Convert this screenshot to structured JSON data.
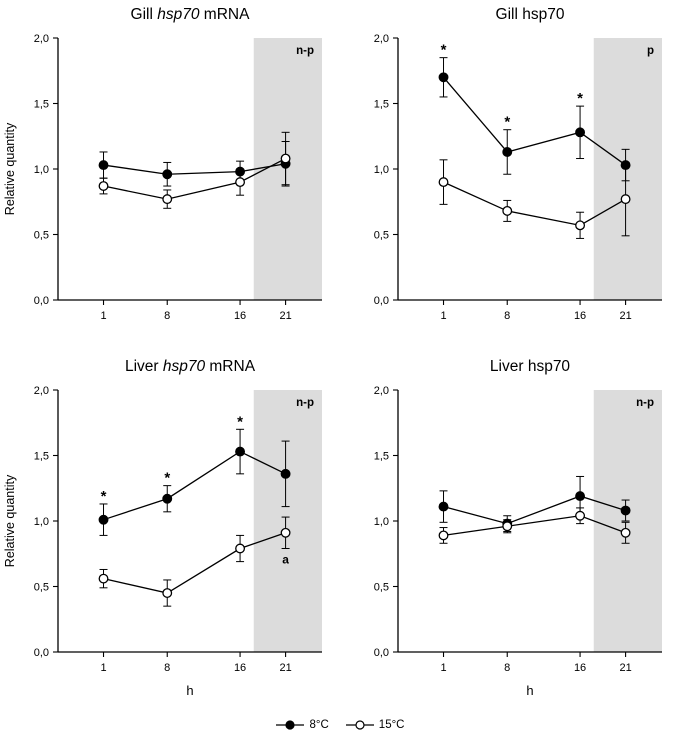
{
  "style": {
    "background": "#ffffff",
    "axis_color": "#000000",
    "series_color": "#000000",
    "night_fill": "#dcdcdc"
  },
  "legend": {
    "items": [
      {
        "label": "8°C",
        "marker": "filled"
      },
      {
        "label": "15°C",
        "marker": "open"
      }
    ]
  },
  "chart_data": [
    {
      "type": "line",
      "title_parts": [
        {
          "text": "Gill ",
          "italic": false
        },
        {
          "text": "hsp70",
          "italic": true
        },
        {
          "text": " mRNA",
          "italic": false
        }
      ],
      "annotation": "n-p",
      "y_label": "Relative quantity",
      "x_label": "",
      "xlim": [
        -4,
        25
      ],
      "ylim": [
        0,
        2
      ],
      "night_start": 17.5,
      "x_ticks": [
        {
          "value": 1,
          "label": "1"
        },
        {
          "value": 8,
          "label": "8"
        },
        {
          "value": 16,
          "label": "16"
        },
        {
          "value": 21,
          "label": "21"
        }
      ],
      "y_ticks": [
        {
          "value": 0,
          "label": "0,0"
        },
        {
          "value": 0.5,
          "label": "0,5"
        },
        {
          "value": 1,
          "label": "1,0"
        },
        {
          "value": 1.5,
          "label": "1,5"
        },
        {
          "value": 2,
          "label": "2,0"
        }
      ],
      "series": [
        {
          "name": "8°C",
          "marker": "filled",
          "x": [
            1,
            8,
            16,
            21
          ],
          "values": [
            1.03,
            0.96,
            0.98,
            1.04
          ],
          "errors": [
            0.1,
            0.09,
            0.08,
            0.17
          ],
          "asterisks": [
            false,
            false,
            false,
            false
          ]
        },
        {
          "name": "15°C",
          "marker": "open",
          "x": [
            1,
            8,
            16,
            21
          ],
          "values": [
            0.87,
            0.77,
            0.9,
            1.08
          ],
          "errors": [
            0.06,
            0.07,
            0.1,
            0.2
          ]
        }
      ]
    },
    {
      "type": "line",
      "title_parts": [
        {
          "text": "Gill hsp70",
          "italic": false
        }
      ],
      "annotation": "p",
      "y_label": "",
      "x_label": "",
      "xlim": [
        -4,
        25
      ],
      "ylim": [
        0,
        2
      ],
      "night_start": 17.5,
      "x_ticks": [
        {
          "value": 1,
          "label": "1"
        },
        {
          "value": 8,
          "label": "8"
        },
        {
          "value": 16,
          "label": "16"
        },
        {
          "value": 21,
          "label": "21"
        }
      ],
      "y_ticks": [
        {
          "value": 0,
          "label": "0,0"
        },
        {
          "value": 0.5,
          "label": "0,5"
        },
        {
          "value": 1,
          "label": "1,0"
        },
        {
          "value": 1.5,
          "label": "1,5"
        },
        {
          "value": 2,
          "label": "2,0"
        }
      ],
      "series": [
        {
          "name": "8°C",
          "marker": "filled",
          "x": [
            1,
            8,
            16,
            21
          ],
          "values": [
            1.7,
            1.13,
            1.28,
            1.03
          ],
          "errors": [
            0.15,
            0.17,
            0.2,
            0.12
          ],
          "asterisks": [
            true,
            true,
            true,
            false
          ]
        },
        {
          "name": "15°C",
          "marker": "open",
          "x": [
            1,
            8,
            16,
            21
          ],
          "values": [
            0.9,
            0.68,
            0.57,
            0.77
          ],
          "errors": [
            0.17,
            0.08,
            0.1,
            0.28
          ]
        }
      ]
    },
    {
      "type": "line",
      "title_parts": [
        {
          "text": "Liver ",
          "italic": false
        },
        {
          "text": "hsp70",
          "italic": true
        },
        {
          "text": " mRNA",
          "italic": false
        }
      ],
      "annotation": "n-p",
      "y_label": "Relative quantity",
      "x_label": "h",
      "xlim": [
        -4,
        25
      ],
      "ylim": [
        0,
        2
      ],
      "night_start": 17.5,
      "x_ticks": [
        {
          "value": 1,
          "label": "1"
        },
        {
          "value": 8,
          "label": "8"
        },
        {
          "value": 16,
          "label": "16"
        },
        {
          "value": 21,
          "label": "21"
        }
      ],
      "y_ticks": [
        {
          "value": 0,
          "label": "0,0"
        },
        {
          "value": 0.5,
          "label": "0,5"
        },
        {
          "value": 1,
          "label": "1,0"
        },
        {
          "value": 1.5,
          "label": "1,5"
        },
        {
          "value": 2,
          "label": "2,0"
        }
      ],
      "series": [
        {
          "name": "8°C",
          "marker": "filled",
          "x": [
            1,
            8,
            16,
            21
          ],
          "values": [
            1.01,
            1.17,
            1.53,
            1.36
          ],
          "errors": [
            0.12,
            0.1,
            0.17,
            0.25
          ],
          "asterisks": [
            true,
            true,
            true,
            false
          ]
        },
        {
          "name": "15°C",
          "marker": "open",
          "x": [
            1,
            8,
            16,
            21
          ],
          "values": [
            0.56,
            0.45,
            0.79,
            0.91
          ],
          "errors": [
            0.07,
            0.1,
            0.1,
            0.12
          ],
          "letters": [
            null,
            null,
            null,
            "a"
          ]
        }
      ]
    },
    {
      "type": "line",
      "title_parts": [
        {
          "text": "Liver hsp70",
          "italic": false
        }
      ],
      "annotation": "n-p",
      "y_label": "",
      "x_label": "h",
      "xlim": [
        -4,
        25
      ],
      "ylim": [
        0,
        2
      ],
      "night_start": 17.5,
      "x_ticks": [
        {
          "value": 1,
          "label": "1"
        },
        {
          "value": 8,
          "label": "8"
        },
        {
          "value": 16,
          "label": "16"
        },
        {
          "value": 21,
          "label": "21"
        }
      ],
      "y_ticks": [
        {
          "value": 0,
          "label": "0,0"
        },
        {
          "value": 0.5,
          "label": "0,5"
        },
        {
          "value": 1,
          "label": "1,0"
        },
        {
          "value": 1.5,
          "label": "1,5"
        },
        {
          "value": 2,
          "label": "2,0"
        }
      ],
      "series": [
        {
          "name": "8°C",
          "marker": "filled",
          "x": [
            1,
            8,
            16,
            21
          ],
          "values": [
            1.11,
            0.98,
            1.19,
            1.08
          ],
          "errors": [
            0.12,
            0.06,
            0.15,
            0.08
          ],
          "asterisks": [
            false,
            false,
            false,
            false
          ]
        },
        {
          "name": "15°C",
          "marker": "open",
          "x": [
            1,
            8,
            16,
            21
          ],
          "values": [
            0.89,
            0.96,
            1.04,
            0.91
          ],
          "errors": [
            0.06,
            0.05,
            0.06,
            0.08
          ]
        }
      ]
    }
  ]
}
